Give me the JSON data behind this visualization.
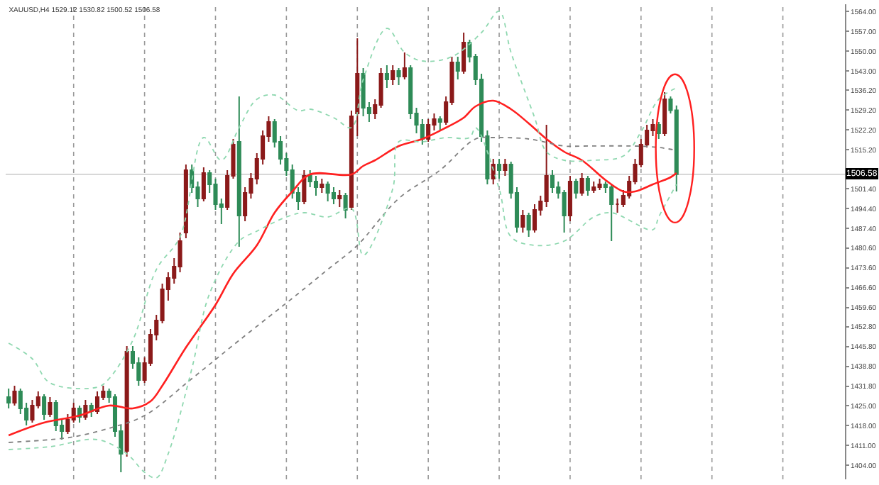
{
  "chart_data": {
    "type": "candlestick",
    "title": "XAUUSD,H4 1529.12 1530.82 1500.52 1506.58",
    "categories": [
      null,
      null,
      null,
      null,
      null,
      null,
      null,
      null,
      null,
      null,
      null,
      null,
      null,
      null,
      null,
      null,
      null,
      null,
      null,
      null,
      null,
      null,
      null,
      null,
      null,
      null,
      null,
      null,
      null,
      null,
      null,
      null,
      null,
      null,
      null,
      null,
      null,
      null,
      null,
      null,
      null,
      null,
      null,
      null,
      null,
      null,
      null,
      null,
      null,
      null,
      null,
      null,
      null,
      null,
      null,
      null,
      null,
      null,
      null,
      null,
      null,
      null,
      null,
      null,
      null,
      null,
      null,
      null,
      null,
      null,
      null,
      null,
      null,
      null,
      null,
      null,
      null,
      null,
      null,
      null,
      null,
      null,
      null,
      null,
      null,
      null,
      null,
      null,
      null,
      null,
      null,
      null,
      null,
      null,
      null,
      null,
      null,
      null,
      null,
      null,
      null,
      null,
      null,
      null,
      null,
      null,
      null,
      null,
      null,
      null,
      null,
      null,
      null,
      null,
      null,
      null,
      null,
      null,
      null,
      null,
      null,
      null,
      null,
      null,
      null,
      null,
      null,
      null,
      null,
      null,
      null,
      null,
      null,
      null,
      null,
      null,
      null,
      null,
      null,
      null,
      null,
      null
    ],
    "ohlc": [
      [
        1428,
        1431,
        1424,
        1426
      ],
      [
        1426,
        1432,
        1425,
        1430
      ],
      [
        1430,
        1431,
        1422,
        1424
      ],
      [
        1424,
        1426,
        1418,
        1420
      ],
      [
        1420,
        1427,
        1419,
        1425
      ],
      [
        1425,
        1430,
        1424,
        1428
      ],
      [
        1428,
        1429,
        1420,
        1422
      ],
      [
        1422,
        1428,
        1421,
        1426
      ],
      [
        1426,
        1427,
        1416,
        1418
      ],
      [
        1418,
        1420,
        1413,
        1416
      ],
      [
        1416,
        1422,
        1415,
        1420
      ],
      [
        1420,
        1426,
        1419,
        1424
      ],
      [
        1424,
        1425,
        1419,
        1421
      ],
      [
        1421,
        1427,
        1420,
        1425
      ],
      [
        1425,
        1426,
        1421,
        1423
      ],
      [
        1423,
        1430,
        1422,
        1428
      ],
      [
        1428,
        1432,
        1427,
        1430
      ],
      [
        1430,
        1431,
        1426,
        1428
      ],
      [
        1428,
        1429,
        1414,
        1416
      ],
      [
        1416,
        1418,
        1401.5,
        1408
      ],
      [
        1409,
        1446,
        1407,
        1444
      ],
      [
        1444,
        1446,
        1438,
        1440
      ],
      [
        1440,
        1442,
        1432,
        1434
      ],
      [
        1434,
        1442,
        1433,
        1440
      ],
      [
        1440,
        1452,
        1439,
        1450
      ],
      [
        1450,
        1457,
        1448,
        1455
      ],
      [
        1455,
        1468,
        1454,
        1466
      ],
      [
        1466,
        1472,
        1462,
        1470
      ],
      [
        1470,
        1477,
        1468,
        1474
      ],
      [
        1474,
        1486,
        1472,
        1483
      ],
      [
        1486,
        1510,
        1484,
        1508
      ],
      [
        1508,
        1510,
        1500,
        1502
      ],
      [
        1502,
        1504,
        1495,
        1498
      ],
      [
        1498,
        1509,
        1497,
        1507
      ],
      [
        1507,
        1508,
        1500,
        1503
      ],
      [
        1503,
        1505,
        1494,
        1496
      ],
      [
        1496,
        1498,
        1489,
        1495
      ],
      [
        1495,
        1508,
        1494,
        1506
      ],
      [
        1506,
        1519,
        1505,
        1517
      ],
      [
        1518,
        1534,
        1481,
        1492
      ],
      [
        1492,
        1502,
        1490,
        1500
      ],
      [
        1500,
        1507,
        1498,
        1505
      ],
      [
        1505,
        1514,
        1503,
        1512
      ],
      [
        1512,
        1522,
        1510,
        1520
      ],
      [
        1520,
        1527,
        1518,
        1525
      ],
      [
        1525,
        1526,
        1516,
        1518
      ],
      [
        1518,
        1520,
        1510,
        1512
      ],
      [
        1512,
        1514,
        1506,
        1508
      ],
      [
        1508,
        1510,
        1498,
        1500
      ],
      [
        1500,
        1502,
        1494,
        1497
      ],
      [
        1497,
        1508,
        1496,
        1506
      ],
      [
        1506,
        1508,
        1502,
        1504
      ],
      [
        1504,
        1506,
        1499,
        1502
      ],
      [
        1502,
        1505,
        1500,
        1503
      ],
      [
        1503,
        1504,
        1497,
        1500
      ],
      [
        1500,
        1502,
        1496,
        1498
      ],
      [
        1498,
        1501,
        1495,
        1499
      ],
      [
        1499,
        1500,
        1491,
        1494
      ],
      [
        1495,
        1529,
        1494,
        1527
      ],
      [
        1528,
        1554.5,
        1520,
        1542
      ],
      [
        1542,
        1544,
        1527,
        1530
      ],
      [
        1530,
        1532,
        1525,
        1528
      ],
      [
        1528,
        1533,
        1526,
        1531
      ],
      [
        1531,
        1544,
        1530,
        1542
      ],
      [
        1542,
        1545,
        1537,
        1540
      ],
      [
        1540,
        1545,
        1538,
        1543
      ],
      [
        1543,
        1544,
        1538,
        1541
      ],
      [
        1541,
        1549.5,
        1540,
        1544
      ],
      [
        1544,
        1545,
        1526,
        1528
      ],
      [
        1528,
        1530,
        1521,
        1524
      ],
      [
        1524,
        1526,
        1517,
        1519
      ],
      [
        1519,
        1526,
        1518,
        1524
      ],
      [
        1524,
        1528,
        1522,
        1526
      ],
      [
        1526,
        1527,
        1522,
        1525
      ],
      [
        1525,
        1534,
        1524,
        1532
      ],
      [
        1532,
        1548,
        1531,
        1546
      ],
      [
        1546,
        1548,
        1540,
        1543
      ],
      [
        1543,
        1556.5,
        1542,
        1553
      ],
      [
        1553,
        1554,
        1546,
        1548
      ],
      [
        1548,
        1549,
        1538,
        1540
      ],
      [
        1540,
        1542,
        1518,
        1520
      ],
      [
        1520,
        1522,
        1503,
        1505
      ],
      [
        1505,
        1512,
        1503,
        1510
      ],
      [
        1510,
        1512,
        1505,
        1508
      ],
      [
        1508,
        1512,
        1506,
        1510
      ],
      [
        1510,
        1511,
        1498,
        1500
      ],
      [
        1500,
        1502,
        1486,
        1488
      ],
      [
        1488,
        1494,
        1486,
        1492
      ],
      [
        1492,
        1493,
        1484.5,
        1487
      ],
      [
        1487,
        1496,
        1486,
        1494
      ],
      [
        1494,
        1499,
        1492,
        1497
      ],
      [
        1497,
        1524,
        1495,
        1506
      ],
      [
        1506,
        1508,
        1500,
        1502
      ],
      [
        1502,
        1504,
        1498,
        1500
      ],
      [
        1500,
        1501,
        1486,
        1492
      ],
      [
        1492,
        1506,
        1490,
        1504
      ],
      [
        1504,
        1505,
        1498,
        1500
      ],
      [
        1500,
        1507,
        1499,
        1505
      ],
      [
        1505,
        1506,
        1499,
        1501
      ],
      [
        1501,
        1504,
        1500,
        1502
      ],
      [
        1502,
        1505,
        1501,
        1503
      ],
      [
        1503,
        1504,
        1500,
        1502
      ],
      [
        1502,
        1503,
        1483,
        1496
      ],
      [
        1496,
        1498,
        1493,
        1496
      ],
      [
        1496,
        1501,
        1495,
        1499
      ],
      [
        1499,
        1506,
        1498,
        1504
      ],
      [
        1504,
        1512,
        1503,
        1510
      ],
      [
        1510,
        1519,
        1509,
        1517
      ],
      [
        1517,
        1524,
        1516,
        1522
      ],
      [
        1522,
        1526,
        1520,
        1524
      ],
      [
        1524,
        1525,
        1519,
        1521
      ],
      [
        1521,
        1535.5,
        1520,
        1533
      ],
      [
        1533,
        1534,
        1528,
        1529.12
      ],
      [
        1529.12,
        1530.82,
        1500.52,
        1506.58
      ],
      null,
      null,
      null,
      null,
      null,
      null,
      null,
      null,
      null,
      null,
      null,
      null,
      null,
      null,
      null,
      null,
      null,
      null,
      null,
      null,
      null,
      null,
      null,
      null,
      null,
      null,
      null,
      null
    ],
    "colors": [
      "#2e8b57",
      "#8b1a1a",
      "#2e8b57",
      "#2e8b57",
      "#8b1a1a",
      "#8b1a1a",
      "#2e8b57",
      "#8b1a1a",
      "#2e8b57",
      "#2e8b57",
      "#8b1a1a",
      "#8b1a1a",
      "#2e8b57",
      "#8b1a1a",
      "#2e8b57",
      "#8b1a1a",
      "#8b1a1a",
      "#2e8b57",
      "#2e8b57",
      "#2e8b57",
      "#8b1a1a",
      "#2e8b57",
      "#2e8b57",
      "#8b1a1a",
      "#8b1a1a",
      "#8b1a1a",
      "#8b1a1a",
      "#8b1a1a",
      "#8b1a1a",
      "#8b1a1a",
      "#8b1a1a",
      "#2e8b57",
      "#2e8b57",
      "#8b1a1a",
      "#2e8b57",
      "#2e8b57",
      "#2e8b57",
      "#8b1a1a",
      "#8b1a1a",
      "#2e8b57",
      "#8b1a1a",
      "#8b1a1a",
      "#8b1a1a",
      "#8b1a1a",
      "#8b1a1a",
      "#2e8b57",
      "#2e8b57",
      "#2e8b57",
      "#2e8b57",
      "#2e8b57",
      "#8b1a1a",
      "#2e8b57",
      "#2e8b57",
      "#8b1a1a",
      "#2e8b57",
      "#2e8b57",
      "#8b1a1a",
      "#2e8b57",
      "#8b1a1a",
      "#8b1a1a",
      "#2e8b57",
      "#2e8b57",
      "#8b1a1a",
      "#8b1a1a",
      "#2e8b57",
      "#8b1a1a",
      "#2e8b57",
      "#8b1a1a",
      "#2e8b57",
      "#2e8b57",
      "#2e8b57",
      "#8b1a1a",
      "#8b1a1a",
      "#2e8b57",
      "#8b1a1a",
      "#8b1a1a",
      "#2e8b57",
      "#8b1a1a",
      "#2e8b57",
      "#2e8b57",
      "#2e8b57",
      "#2e8b57",
      "#8b1a1a",
      "#2e8b57",
      "#8b1a1a",
      "#2e8b57",
      "#2e8b57",
      "#8b1a1a",
      "#2e8b57",
      "#8b1a1a",
      "#8b1a1a",
      "#8b1a1a",
      "#2e8b57",
      "#2e8b57",
      "#2e8b57",
      "#8b1a1a",
      "#2e8b57",
      "#8b1a1a",
      "#2e8b57",
      "#8b1a1a",
      "#8b1a1a",
      "#2e8b57",
      "#2e8b57",
      "#8b1a1a",
      "#8b1a1a",
      "#8b1a1a",
      "#8b1a1a",
      "#8b1a1a",
      "#8b1a1a",
      "#8b1a1a",
      "#2e8b57",
      "#8b1a1a",
      "#2e8b57",
      "#2e8b57",
      null,
      null,
      null,
      null,
      null,
      null,
      null,
      null,
      null,
      null,
      null,
      null,
      null,
      null,
      null,
      null,
      null,
      null,
      null,
      null,
      null,
      null,
      null,
      null,
      null,
      null,
      null,
      null
    ],
    "series": [
      {
        "type": "line",
        "color": "#ff2020",
        "line_style": "solid",
        "values": [
          1414.5,
          null,
          null,
          null,
          null,
          null,
          1419,
          null,
          null,
          null,
          null,
          null,
          1421.5,
          null,
          null,
          null,
          null,
          1425,
          null,
          null,
          null,
          1424,
          null,
          null,
          1426.5,
          null,
          1432,
          null,
          null,
          null,
          1445.5,
          null,
          null,
          null,
          null,
          1460.5,
          null,
          null,
          1471.5,
          null,
          null,
          null,
          1481.5,
          null,
          null,
          1493,
          null,
          null,
          1500.5,
          null,
          null,
          1506.5,
          null,
          null,
          null,
          null,
          null,
          null,
          1506.5,
          null,
          1509.5,
          null,
          1511.5,
          null,
          null,
          null,
          1516.5,
          null,
          null,
          null,
          1519,
          null,
          null,
          null,
          1523,
          null,
          null,
          1526.5,
          null,
          1530.5,
          null,
          null,
          1532.5,
          null,
          null,
          1529.5,
          null,
          null,
          1524.5,
          null,
          null,
          1519,
          null,
          null,
          1514.5,
          null,
          null,
          1511.5,
          null,
          null,
          null,
          1504.5,
          null,
          null,
          1500.5,
          null,
          1500.5,
          null,
          null,
          1503,
          null,
          null,
          1505.5,
          1507,
          null,
          null,
          null,
          null,
          null,
          null,
          null,
          null,
          null,
          null,
          null,
          null,
          null,
          null,
          null,
          null,
          null,
          null,
          null,
          null,
          null,
          null,
          null,
          null,
          null,
          null,
          null,
          null
        ]
      },
      {
        "type": "line",
        "color": "#808080",
        "line_style": "dotted",
        "values": [
          1412,
          null,
          null,
          null,
          null,
          null,
          null,
          1413,
          null,
          null,
          null,
          1414,
          null,
          null,
          null,
          null,
          null,
          1417,
          null,
          null,
          null,
          null,
          null,
          1421.5,
          null,
          null,
          null,
          null,
          null,
          null,
          null,
          1434.5,
          null,
          null,
          null,
          null,
          null,
          null,
          null,
          1448,
          null,
          null,
          null,
          null,
          null,
          null,
          null,
          null,
          null,
          1464.5,
          null,
          null,
          null,
          null,
          1473,
          null,
          null,
          null,
          null,
          1481.5,
          null,
          null,
          null,
          null,
          null,
          null,
          1498,
          null,
          null,
          null,
          null,
          null,
          null,
          1508,
          null,
          null,
          null,
          null,
          null,
          1519,
          null,
          null,
          1519.5,
          null,
          null,
          null,
          null,
          null,
          1519,
          null,
          null,
          null,
          null,
          null,
          1516.5,
          null,
          null,
          1516.5,
          null,
          null,
          null,
          null,
          null,
          null,
          null,
          null,
          1516.5,
          null,
          null,
          null,
          1516,
          null,
          null,
          1515,
          null,
          null,
          null,
          null,
          null,
          null,
          null,
          null,
          null,
          null,
          null,
          null,
          null,
          null,
          null,
          null,
          null,
          null,
          null,
          null,
          null,
          null,
          null,
          null,
          null,
          null,
          null,
          null
        ]
      },
      {
        "type": "line",
        "color": "#8fd8b0",
        "line_style": "dotted",
        "values": [
          1447,
          null,
          null,
          null,
          1441.5,
          null,
          null,
          1433,
          null,
          null,
          null,
          null,
          null,
          null,
          null,
          1431.5,
          null,
          1434.5,
          null,
          null,
          null,
          1448,
          null,
          null,
          null,
          1473,
          null,
          null,
          null,
          1484.5,
          null,
          null,
          null,
          1519.5,
          null,
          null,
          1511.5,
          null,
          null,
          1523,
          null,
          null,
          1533,
          null,
          null,
          1534.5,
          null,
          null,
          null,
          1529,
          null,
          1529.5,
          null,
          null,
          null,
          1526.5,
          null,
          null,
          1523,
          null,
          1540,
          null,
          null,
          null,
          1558,
          null,
          null,
          1549.5,
          null,
          null,
          1546.5,
          null,
          null,
          null,
          null,
          1548,
          null,
          null,
          null,
          null,
          1556.5,
          null,
          null,
          1564,
          null,
          1549.5,
          null,
          null,
          null,
          1526.5,
          null,
          1514.5,
          null,
          null,
          1511.5,
          null,
          null,
          null,
          null,
          1511.5,
          null,
          null,
          null,
          null,
          1513,
          null,
          null,
          1521.5,
          null,
          null,
          1533,
          null,
          null,
          1537,
          null,
          null,
          null,
          null,
          null,
          null,
          null,
          null,
          null,
          null,
          null,
          null,
          null,
          null,
          null,
          null,
          null,
          null,
          null,
          null,
          null,
          null,
          null,
          null,
          null,
          null,
          null,
          null
        ]
      },
      {
        "type": "line",
        "color": "#8fd8b0",
        "line_style": "dotted",
        "values": [
          1409.5,
          null,
          null,
          null,
          null,
          null,
          null,
          1410.5,
          null,
          null,
          null,
          null,
          null,
          null,
          null,
          1413,
          null,
          null,
          null,
          null,
          1408,
          null,
          null,
          1401.5,
          null,
          1399.5,
          null,
          1408,
          null,
          null,
          null,
          1438,
          null,
          null,
          1464.5,
          null,
          null,
          null,
          null,
          1483,
          null,
          null,
          1486.5,
          null,
          null,
          null,
          null,
          1491.5,
          null,
          null,
          1493,
          null,
          null,
          null,
          1491.5,
          null,
          null,
          null,
          1494.5,
          null,
          1478,
          null,
          null,
          null,
          null,
          1501.5,
          1518,
          null,
          null,
          null,
          1518,
          null,
          null,
          null,
          1519.5,
          null,
          null,
          null,
          1519.5,
          1523,
          null,
          null,
          null,
          1501.5,
          null,
          1484.5,
          null,
          null,
          null,
          1481.5,
          null,
          null,
          null,
          null,
          1483,
          null,
          null,
          null,
          null,
          1491.5,
          null,
          null,
          1493,
          null,
          null,
          null,
          null,
          null,
          null,
          1487,
          1491.5,
          null,
          null,
          1503,
          null,
          null,
          null,
          null,
          null,
          null,
          null,
          null,
          null,
          null,
          null,
          null,
          null,
          null,
          null,
          null,
          null,
          null,
          null,
          null,
          null,
          null,
          null,
          null,
          null,
          null,
          null,
          null
        ]
      }
    ],
    "ylim": [
      1399,
      1566.5
    ],
    "yticks": [
      {
        "value": 1564,
        "label": "1564.00"
      },
      {
        "value": 1557,
        "label": "1557.00"
      },
      {
        "value": 1550,
        "label": "1550.00"
      },
      {
        "value": 1543,
        "label": "1543.00"
      },
      {
        "value": 1536.2,
        "label": "1536.20"
      },
      {
        "value": 1529.2,
        "label": "1529.20"
      },
      {
        "value": 1522.2,
        "label": "1522.20"
      },
      {
        "value": 1515.2,
        "label": "1515.20"
      },
      {
        "value": 1501.4,
        "label": "1501.40"
      },
      {
        "value": 1494.4,
        "label": "1494.40"
      },
      {
        "value": 1487.4,
        "label": "1487.40"
      },
      {
        "value": 1480.6,
        "label": "1480.60"
      },
      {
        "value": 1473.6,
        "label": "1473.60"
      },
      {
        "value": 1466.6,
        "label": "1466.60"
      },
      {
        "value": 1459.6,
        "label": "1459.60"
      },
      {
        "value": 1452.8,
        "label": "1452.80"
      },
      {
        "value": 1445.8,
        "label": "1445.80"
      },
      {
        "value": 1438.8,
        "label": "1438.80"
      },
      {
        "value": 1431.8,
        "label": "1431.80"
      },
      {
        "value": 1425,
        "label": "1425.00"
      },
      {
        "value": 1418,
        "label": "1418.00"
      },
      {
        "value": 1411,
        "label": "1411.00"
      },
      {
        "value": 1404,
        "label": "1404.00"
      }
    ],
    "ref_lines": [
      {
        "axis": "y",
        "value": 1506.58,
        "label": "1506.58",
        "color": "#c8c8c8"
      }
    ],
    "tick_labels": "y"
  }
}
